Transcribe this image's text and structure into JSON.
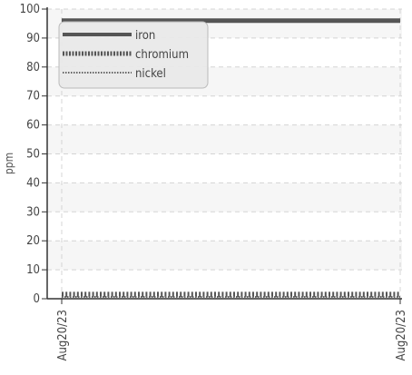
{
  "chart_data": {
    "type": "line",
    "xlabel": "",
    "ylabel": "ppm",
    "ylim": [
      0,
      100
    ],
    "yticks": [
      0,
      10,
      20,
      30,
      40,
      50,
      60,
      70,
      80,
      90,
      100
    ],
    "x_tick_labels": [
      "Aug20/23",
      "Aug20/23"
    ],
    "grid": true,
    "legend_position": "top-left",
    "series": [
      {
        "name": "iron",
        "style": "solid",
        "color": "#555555",
        "values": [
          96,
          96
        ]
      },
      {
        "name": "chromium",
        "style": "dashed",
        "color": "#555555",
        "values": [
          0.5,
          0.5
        ]
      },
      {
        "name": "nickel",
        "style": "dotted",
        "color": "#666666",
        "values": [
          0.3,
          0.3
        ]
      }
    ]
  }
}
